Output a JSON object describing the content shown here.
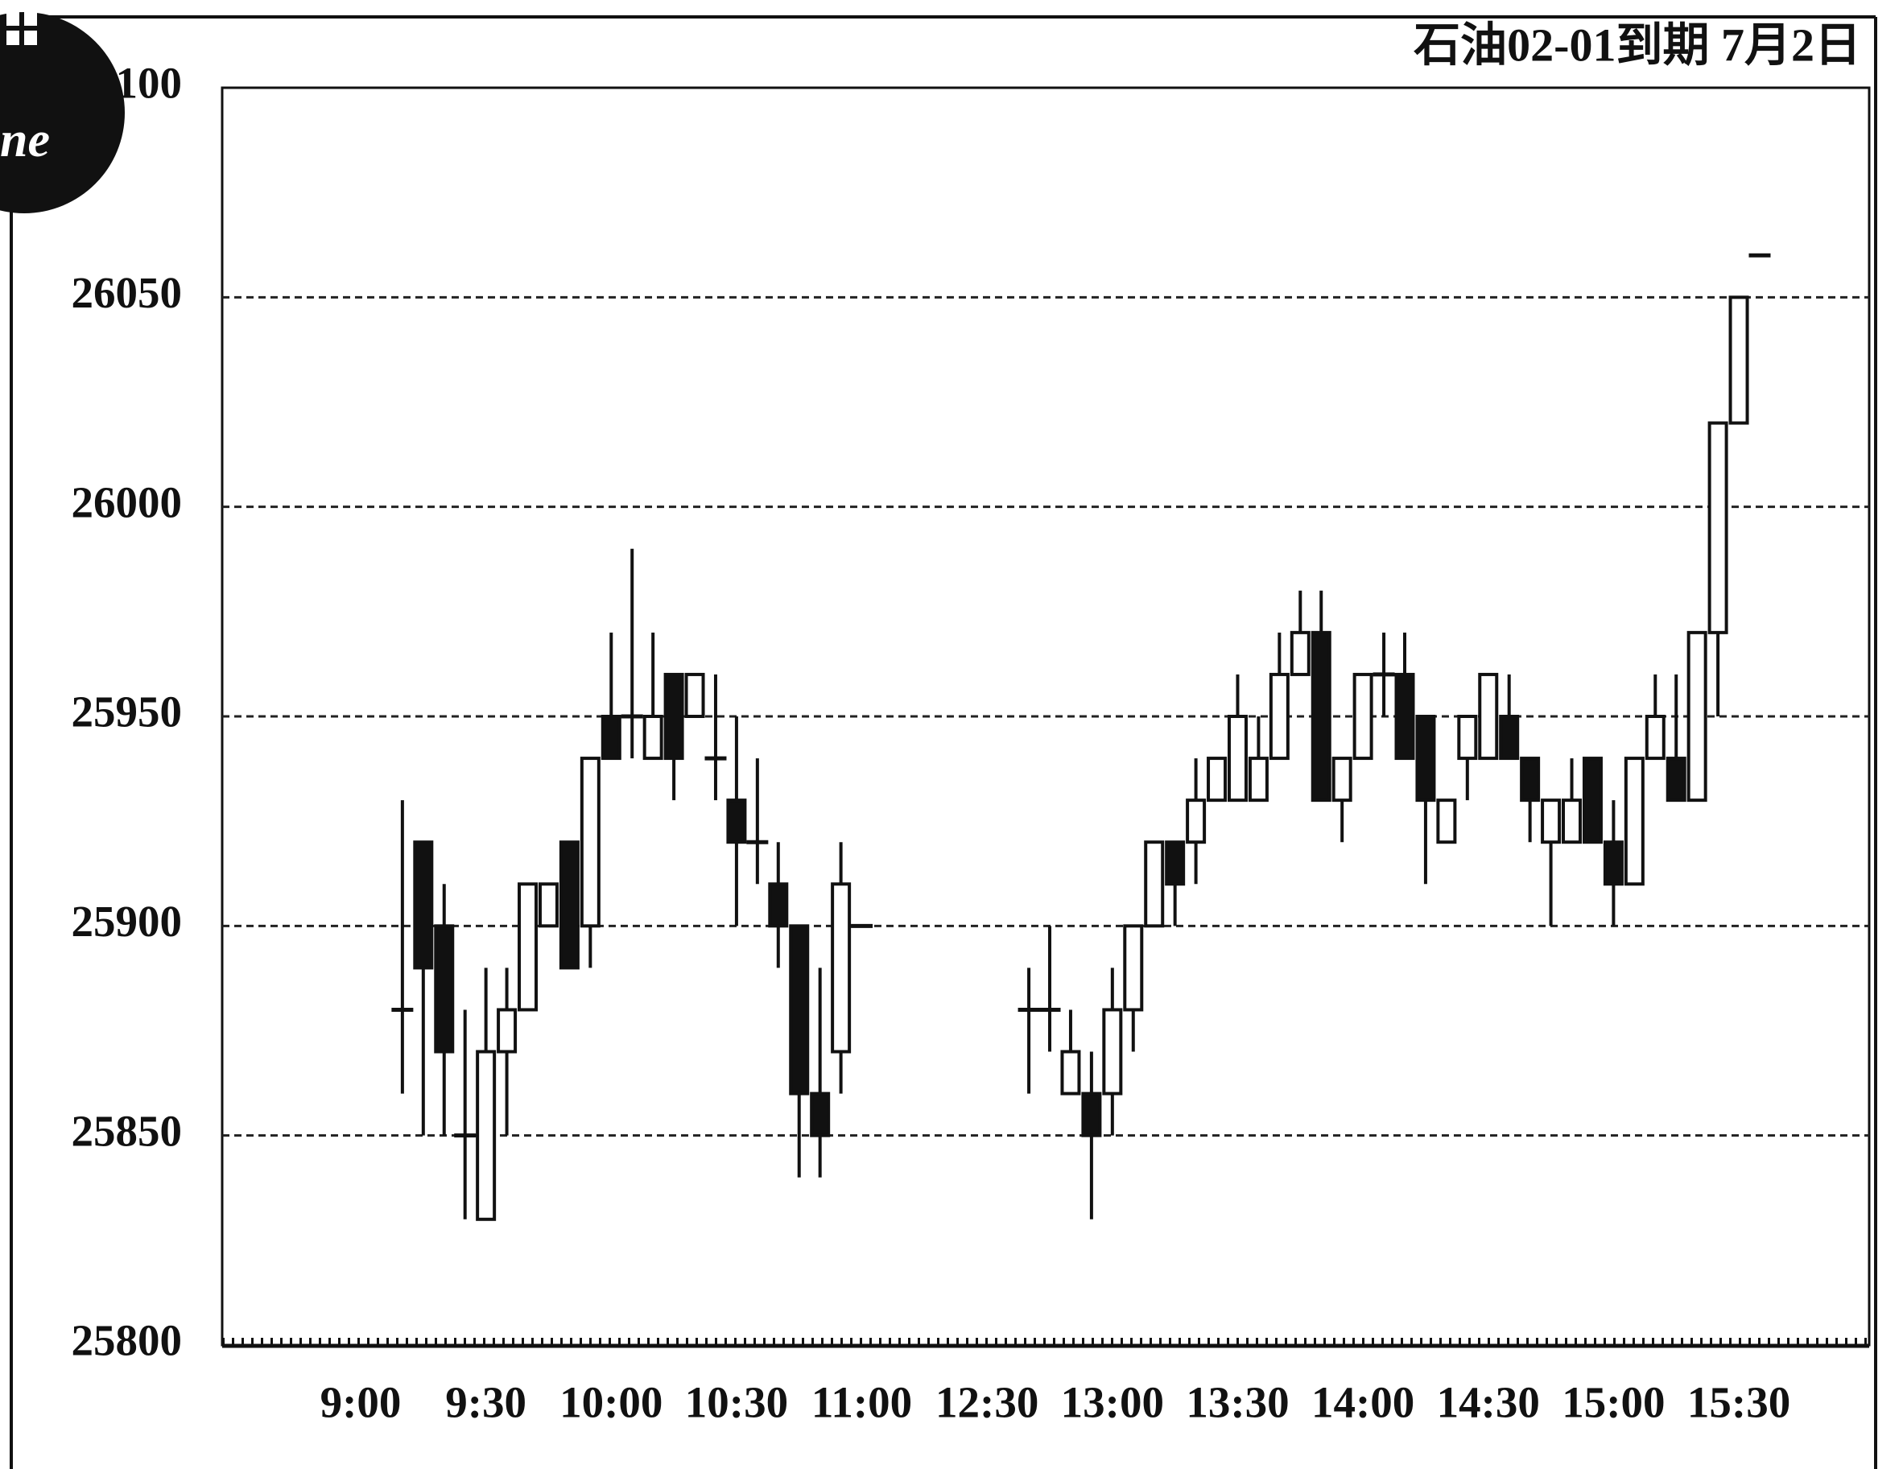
{
  "corner_badge": "ne",
  "chart_data": {
    "type": "candlestick",
    "title": "石油02-01到期 7月2日",
    "categories": [
      "9:00",
      null,
      null,
      null,
      null,
      null,
      "9:30",
      null,
      null,
      null,
      null,
      null,
      "10:00",
      null,
      null,
      null,
      null,
      null,
      "10:30",
      null,
      null,
      null,
      null,
      null,
      "11:00",
      null,
      null,
      null,
      null,
      null,
      "12:30",
      null,
      null,
      null,
      null,
      null,
      "13:00",
      null,
      null,
      null,
      null,
      null,
      "13:30",
      null,
      null,
      null,
      null,
      null,
      "14:00",
      null,
      null,
      null,
      null,
      null,
      "14:30",
      null,
      null,
      null,
      null,
      null,
      "15:00",
      null,
      null,
      null,
      null,
      null,
      "15:30",
      null
    ],
    "open": [
      null,
      null,
      25880,
      25920,
      25900,
      25850,
      25830,
      25870,
      25880,
      25900,
      25920,
      25900,
      25950,
      25950,
      25940,
      25960,
      25950,
      25940,
      25930,
      25920,
      25910,
      25900,
      25860,
      25870,
      25900,
      null,
      null,
      null,
      null,
      null,
      null,
      null,
      25880,
      25880,
      25860,
      25860,
      25860,
      25880,
      25900,
      25920,
      25920,
      25930,
      25930,
      25930,
      25940,
      25960,
      25970,
      25930,
      25940,
      25960,
      25960,
      25950,
      25920,
      25940,
      25940,
      25950,
      25940,
      25920,
      25920,
      25940,
      25920,
      25910,
      25940,
      25940,
      25930,
      25970,
      26020,
      26060
    ],
    "high": [
      null,
      null,
      25930,
      25920,
      25910,
      25880,
      25890,
      25890,
      25910,
      25910,
      25920,
      25940,
      25970,
      25990,
      25970,
      25960,
      25960,
      25960,
      25950,
      25940,
      25920,
      25900,
      25890,
      25920,
      25900,
      null,
      null,
      null,
      null,
      null,
      null,
      null,
      25890,
      25900,
      25880,
      25870,
      25890,
      25900,
      25920,
      25920,
      25940,
      25940,
      25960,
      25950,
      25970,
      25980,
      25980,
      25940,
      25960,
      25970,
      25970,
      25950,
      25930,
      25950,
      25960,
      25960,
      25940,
      25930,
      25940,
      25940,
      25930,
      25940,
      25960,
      25960,
      25970,
      26020,
      26050,
      26060
    ],
    "low": [
      null,
      null,
      25860,
      25850,
      25850,
      25830,
      25830,
      25850,
      25880,
      25900,
      25890,
      25890,
      25940,
      25940,
      25940,
      25930,
      25950,
      25930,
      25900,
      25910,
      25890,
      25840,
      25840,
      25860,
      25900,
      null,
      null,
      null,
      null,
      null,
      null,
      null,
      25860,
      25870,
      25860,
      25830,
      25850,
      25870,
      25900,
      25900,
      25910,
      25930,
      25930,
      25930,
      25940,
      25960,
      25930,
      25920,
      25940,
      25950,
      25940,
      25910,
      25920,
      25930,
      25940,
      25940,
      25920,
      25900,
      25920,
      25920,
      25900,
      25910,
      25940,
      25930,
      25930,
      25950,
      26020,
      26060
    ],
    "close": [
      null,
      null,
      25880,
      25890,
      25870,
      25850,
      25870,
      25880,
      25910,
      25910,
      25890,
      25940,
      25940,
      25950,
      25950,
      25940,
      25960,
      25940,
      25920,
      25920,
      25900,
      25860,
      25850,
      25910,
      25900,
      null,
      null,
      null,
      null,
      null,
      null,
      null,
      25880,
      25880,
      25870,
      25850,
      25880,
      25900,
      25920,
      25910,
      25930,
      25940,
      25950,
      25940,
      25960,
      25970,
      25930,
      25940,
      25960,
      25960,
      25940,
      25930,
      25930,
      25950,
      25960,
      25940,
      25930,
      25930,
      25930,
      25920,
      25910,
      25940,
      25950,
      25930,
      25970,
      26020,
      26050,
      26060
    ],
    "up_color": "#ffffff",
    "down_color": "#111111",
    "ylim": [
      25800,
      26100
    ],
    "yticks": [
      25800,
      25850,
      25900,
      25950,
      26000,
      26050,
      26100
    ],
    "grid": true
  }
}
